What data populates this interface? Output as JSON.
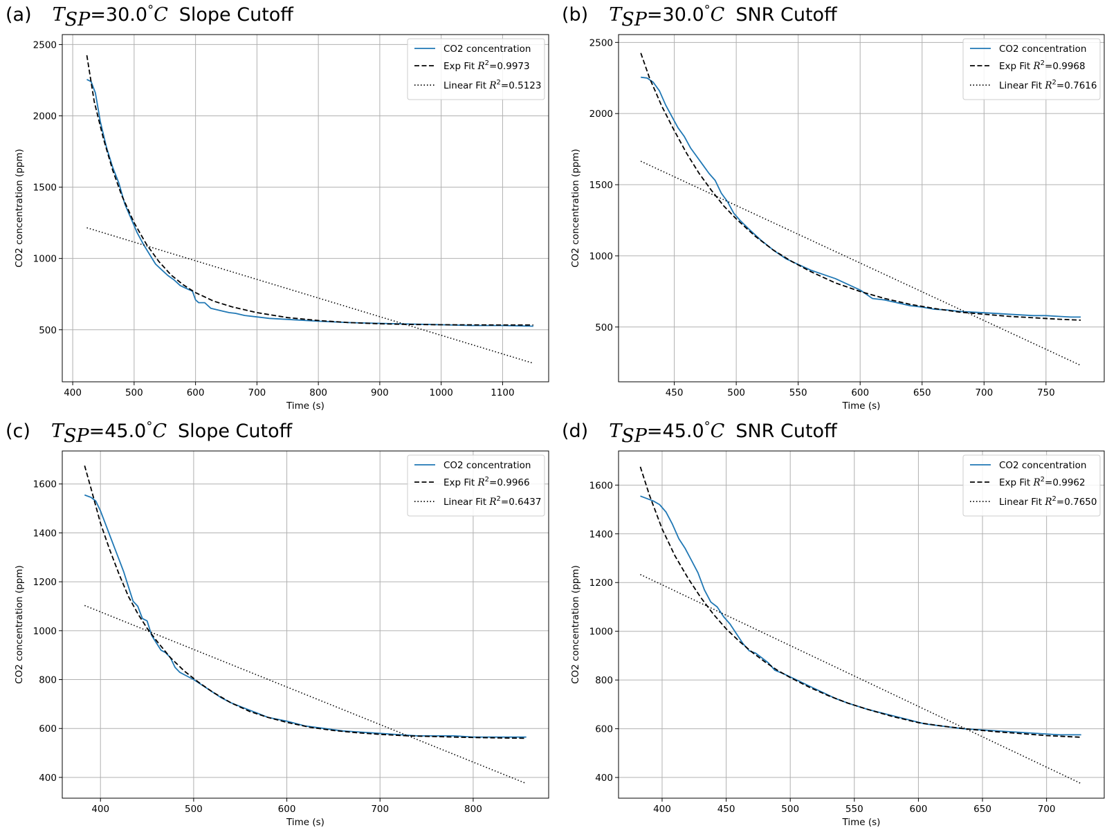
{
  "figure": {
    "colors": {
      "data_line": "#1f77b4",
      "fit_line": "#000000",
      "grid": "#b0b0b0",
      "axes": "#000000"
    }
  },
  "chart_data": [
    {
      "panel": "(a)",
      "title": {
        "var": "T",
        "sub": "SP",
        "rest": "=30.0",
        "deg": "°",
        "unit": "C",
        "suffix": "Slope Cutoff"
      },
      "type": "line",
      "xlabel": "Time (s)",
      "ylabel": "CO2 concentration (ppm)",
      "xlim": [
        383,
        1175
      ],
      "ylim": [
        135,
        2570
      ],
      "xticks": [
        400,
        500,
        600,
        700,
        800,
        900,
        1000,
        1100
      ],
      "yticks": [
        500,
        1000,
        1500,
        2000,
        2500
      ],
      "grid": true,
      "legend_position": "top-right",
      "legend": [
        {
          "label": "CO2 concentration"
        },
        {
          "label": "Exp Fit ",
          "r2": "=0.9973"
        },
        {
          "label": "Linear Fit ",
          "r2": "=0.5123"
        }
      ],
      "series": [
        {
          "name": "CO2 concentration",
          "style": "solid",
          "x": [
            423,
            430,
            437,
            445,
            455,
            465,
            475,
            485,
            495,
            505,
            515,
            525,
            535,
            545,
            555,
            565,
            575,
            585,
            595,
            600,
            605,
            615,
            625,
            635,
            645,
            655,
            665,
            680,
            700,
            720,
            740,
            760,
            800,
            850,
            900,
            950,
            1000,
            1050,
            1100,
            1150
          ],
          "y": [
            2255,
            2240,
            2160,
            1960,
            1780,
            1640,
            1530,
            1380,
            1280,
            1180,
            1100,
            1030,
            960,
            920,
            880,
            850,
            810,
            790,
            770,
            710,
            690,
            690,
            650,
            640,
            630,
            620,
            615,
            600,
            590,
            580,
            575,
            570,
            560,
            550,
            545,
            540,
            535,
            530,
            530,
            525
          ]
        },
        {
          "name": "Exp Fit",
          "style": "dashed",
          "x": [
            423,
            435,
            450,
            465,
            480,
            500,
            520,
            540,
            560,
            580,
            600,
            630,
            660,
            700,
            750,
            800,
            850,
            900,
            950,
            1000,
            1050,
            1100,
            1150
          ],
          "y": [
            2425,
            2100,
            1840,
            1620,
            1440,
            1250,
            1100,
            980,
            885,
            815,
            760,
            700,
            660,
            620,
            585,
            565,
            550,
            542,
            537,
            535,
            534,
            533,
            533
          ]
        },
        {
          "name": "Linear Fit",
          "style": "dotted",
          "x": [
            423,
            1150
          ],
          "y": [
            1215,
            265
          ]
        }
      ]
    },
    {
      "panel": "(b)",
      "title": {
        "var": "T",
        "sub": "SP",
        "rest": "=30.0",
        "deg": "°",
        "unit": "C",
        "suffix": "SNR Cutoff"
      },
      "type": "line",
      "xlabel": "Time (s)",
      "ylabel": "CO2 concentration (ppm)",
      "xlim": [
        405,
        797
      ],
      "ylim": [
        115,
        2555
      ],
      "xticks": [
        450,
        500,
        550,
        600,
        650,
        700,
        750
      ],
      "yticks": [
        500,
        1000,
        1500,
        2000,
        2500
      ],
      "grid": true,
      "legend_position": "top-right",
      "legend": [
        {
          "label": "CO2 concentration"
        },
        {
          "label": "Exp Fit ",
          "r2": "=0.9968"
        },
        {
          "label": "Linear Fit ",
          "r2": "=0.7616"
        }
      ],
      "series": [
        {
          "name": "CO2 concentration",
          "style": "solid",
          "x": [
            423,
            428,
            433,
            438,
            443,
            448,
            453,
            458,
            463,
            468,
            473,
            478,
            483,
            488,
            493,
            498,
            503,
            510,
            520,
            530,
            540,
            550,
            560,
            570,
            580,
            590,
            600,
            610,
            620,
            630,
            640,
            650,
            660,
            670,
            680,
            690,
            700,
            710,
            720,
            730,
            740,
            750,
            760,
            770,
            778
          ],
          "y": [
            2255,
            2250,
            2220,
            2160,
            2060,
            1980,
            1900,
            1840,
            1760,
            1700,
            1640,
            1580,
            1530,
            1440,
            1380,
            1300,
            1250,
            1190,
            1110,
            1040,
            980,
            940,
            900,
            870,
            840,
            800,
            760,
            700,
            690,
            670,
            650,
            640,
            625,
            620,
            610,
            605,
            600,
            595,
            590,
            585,
            580,
            580,
            575,
            570,
            570
          ]
        },
        {
          "name": "Exp Fit",
          "style": "dashed",
          "x": [
            423,
            430,
            440,
            450,
            460,
            470,
            480,
            490,
            500,
            515,
            530,
            545,
            560,
            580,
            600,
            620,
            640,
            660,
            680,
            700,
            720,
            740,
            760,
            778
          ],
          "y": [
            2425,
            2250,
            2050,
            1880,
            1720,
            1580,
            1460,
            1350,
            1260,
            1140,
            1040,
            960,
            890,
            810,
            750,
            700,
            660,
            630,
            605,
            590,
            575,
            565,
            555,
            548
          ]
        },
        {
          "name": "Linear Fit",
          "style": "dotted",
          "x": [
            423,
            778
          ],
          "y": [
            1665,
            230
          ]
        }
      ]
    },
    {
      "panel": "(c)",
      "title": {
        "var": "T",
        "sub": "SP",
        "rest": "=45.0",
        "deg": "°",
        "unit": "C",
        "suffix": "Slope Cutoff"
      },
      "type": "line",
      "xlabel": "Time (s)",
      "ylabel": "CO2 concentration (ppm)",
      "xlim": [
        359,
        881
      ],
      "ylim": [
        315,
        1735
      ],
      "xticks": [
        400,
        500,
        600,
        700,
        800
      ],
      "yticks": [
        400,
        600,
        800,
        1000,
        1200,
        1400,
        1600
      ],
      "grid": true,
      "legend_position": "top-right",
      "legend": [
        {
          "label": "CO2 concentration"
        },
        {
          "label": "Exp Fit ",
          "r2": "=0.9966"
        },
        {
          "label": "Linear Fit ",
          "r2": "=0.6437"
        }
      ],
      "series": [
        {
          "name": "CO2 concentration",
          "style": "solid",
          "x": [
            383,
            390,
            395,
            400,
            405,
            410,
            415,
            420,
            425,
            430,
            435,
            440,
            445,
            450,
            455,
            460,
            465,
            470,
            475,
            480,
            485,
            490,
            500,
            510,
            520,
            530,
            540,
            550,
            560,
            570,
            580,
            600,
            620,
            640,
            660,
            680,
            700,
            720,
            740,
            760,
            780,
            800,
            820,
            840,
            857
          ],
          "y": [
            1555,
            1545,
            1530,
            1490,
            1440,
            1390,
            1340,
            1290,
            1240,
            1180,
            1120,
            1100,
            1050,
            1040,
            980,
            950,
            920,
            910,
            890,
            850,
            830,
            820,
            800,
            775,
            750,
            725,
            705,
            690,
            675,
            660,
            645,
            630,
            610,
            600,
            590,
            585,
            580,
            575,
            570,
            570,
            570,
            565,
            565,
            565,
            565
          ]
        },
        {
          "name": "Exp Fit",
          "style": "dashed",
          "x": [
            383,
            390,
            400,
            410,
            420,
            430,
            440,
            450,
            460,
            475,
            490,
            505,
            520,
            540,
            560,
            580,
            600,
            625,
            650,
            675,
            700,
            730,
            760,
            790,
            820,
            857
          ],
          "y": [
            1675,
            1580,
            1440,
            1330,
            1230,
            1140,
            1070,
            1010,
            960,
            890,
            835,
            790,
            750,
            705,
            670,
            645,
            625,
            605,
            592,
            583,
            576,
            570,
            567,
            564,
            562,
            560
          ]
        },
        {
          "name": "Linear Fit",
          "style": "dotted",
          "x": [
            383,
            857
          ],
          "y": [
            1103,
            375
          ]
        }
      ]
    },
    {
      "panel": "(d)",
      "title": {
        "var": "T",
        "sub": "SP",
        "rest": "=45.0",
        "deg": "°",
        "unit": "C",
        "suffix": "SNR Cutoff"
      },
      "type": "line",
      "xlabel": "Time (s)",
      "ylabel": "CO2 concentration (ppm)",
      "xlim": [
        366,
        745
      ],
      "ylim": [
        315,
        1740
      ],
      "xticks": [
        400,
        450,
        500,
        550,
        600,
        650,
        700
      ],
      "yticks": [
        400,
        600,
        800,
        1000,
        1200,
        1400,
        1600
      ],
      "grid": true,
      "legend_position": "top-right",
      "legend": [
        {
          "label": "CO2 concentration"
        },
        {
          "label": "Exp Fit ",
          "r2": "=0.9962"
        },
        {
          "label": "Linear Fit ",
          "r2": "=0.7650"
        }
      ],
      "series": [
        {
          "name": "CO2 concentration",
          "style": "solid",
          "x": [
            383,
            388,
            393,
            398,
            403,
            408,
            413,
            418,
            423,
            428,
            433,
            438,
            443,
            448,
            453,
            458,
            463,
            468,
            473,
            478,
            483,
            488,
            495,
            505,
            515,
            525,
            535,
            545,
            560,
            575,
            590,
            605,
            620,
            635,
            650,
            665,
            680,
            695,
            710,
            727
          ],
          "y": [
            1555,
            1545,
            1535,
            1520,
            1490,
            1440,
            1380,
            1340,
            1290,
            1240,
            1170,
            1120,
            1100,
            1060,
            1030,
            990,
            950,
            920,
            910,
            890,
            870,
            840,
            825,
            800,
            775,
            750,
            725,
            705,
            680,
            660,
            640,
            620,
            610,
            600,
            595,
            590,
            585,
            580,
            575,
            575
          ]
        },
        {
          "name": "Exp Fit",
          "style": "dashed",
          "x": [
            383,
            390,
            400,
            410,
            420,
            430,
            440,
            450,
            460,
            470,
            480,
            490,
            500,
            515,
            530,
            545,
            560,
            580,
            600,
            620,
            640,
            660,
            680,
            700,
            727
          ],
          "y": [
            1675,
            1560,
            1420,
            1310,
            1220,
            1140,
            1070,
            1010,
            960,
            915,
            875,
            840,
            810,
            770,
            735,
            705,
            680,
            650,
            625,
            610,
            598,
            588,
            580,
            572,
            565
          ]
        },
        {
          "name": "Linear Fit",
          "style": "dotted",
          "x": [
            383,
            727
          ],
          "y": [
            1233,
            375
          ]
        }
      ]
    }
  ]
}
